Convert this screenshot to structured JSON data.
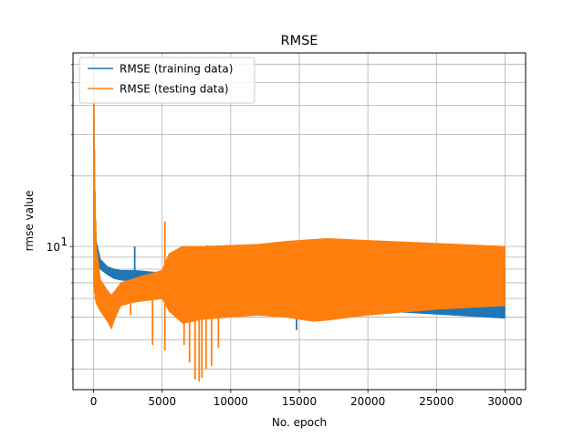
{
  "chart_data": {
    "type": "line",
    "title": "RMSE",
    "xlabel": "No. epoch",
    "ylabel": "rmse value",
    "xlim": [
      -1500,
      31500
    ],
    "ylim": [
      2.45,
      67
    ],
    "yscale": "log",
    "grid": true,
    "legend_position": "top-left",
    "x_ticks": [
      0,
      5000,
      10000,
      15000,
      20000,
      25000,
      30000
    ],
    "x_tick_labels": [
      "0",
      "5000",
      "10000",
      "15000",
      "20000",
      "25000",
      "30000"
    ],
    "y_major_ticks": [
      10
    ],
    "y_major_tick_label_base": "10",
    "y_major_tick_label_exp": "1",
    "y_minor_ticks": [
      3,
      4,
      5,
      6,
      7,
      8,
      9,
      20,
      30,
      40,
      50,
      60
    ],
    "series": [
      {
        "name": "RMSE (training data)",
        "color": "#1f77b4",
        "band": {
          "x": [
            0,
            100,
            200,
            500,
            1000,
            1500,
            2000,
            3000,
            4000,
            5000,
            5500,
            7000,
            9000,
            12000,
            15000,
            17000,
            20000,
            25000,
            30000
          ],
          "upper": [
            52,
            14,
            10.5,
            8.8,
            8.2,
            8.0,
            7.9,
            7.9,
            7.8,
            7.7,
            8.6,
            8.8,
            8.6,
            8.4,
            8.5,
            8.6,
            8.6,
            8.5,
            8.3
          ],
          "lower": [
            9.5,
            8.8,
            8.4,
            8.0,
            7.6,
            7.3,
            7.2,
            7.1,
            7.0,
            6.9,
            5.9,
            5.8,
            5.7,
            5.6,
            5.5,
            5.45,
            5.35,
            5.15,
            4.95
          ]
        },
        "spikes": [
          [
            3000,
            10.0
          ],
          [
            8300,
            10.1
          ],
          [
            14800,
            4.4
          ],
          [
            13200,
            5.0
          ]
        ]
      },
      {
        "name": "RMSE (testing data)",
        "color": "#ff7f0e",
        "band": {
          "x": [
            0,
            100,
            200,
            500,
            1000,
            1300,
            1600,
            2000,
            3000,
            4000,
            5000,
            5500,
            6500,
            8000,
            10000,
            12000,
            14000,
            15000,
            16000,
            17000,
            20000,
            25000,
            30000
          ],
          "upper": [
            60,
            20,
            10.0,
            7.2,
            6.5,
            6.2,
            6.5,
            7.0,
            7.3,
            7.6,
            7.9,
            9.3,
            10.0,
            10.0,
            10.1,
            10.2,
            10.5,
            10.6,
            10.7,
            10.8,
            10.6,
            10.3,
            10.0
          ],
          "lower": [
            7.0,
            6.0,
            5.7,
            5.3,
            4.8,
            4.45,
            5.0,
            5.6,
            5.8,
            5.9,
            6.0,
            5.3,
            4.7,
            4.9,
            5.0,
            5.1,
            5.0,
            4.9,
            4.8,
            4.85,
            5.1,
            5.4,
            5.6
          ]
        },
        "spikes": [
          [
            5200,
            12.8
          ],
          [
            7000,
            3.2
          ],
          [
            7400,
            2.7
          ],
          [
            7700,
            2.65
          ],
          [
            7900,
            2.75
          ],
          [
            8200,
            3.0
          ],
          [
            8600,
            3.1
          ],
          [
            6600,
            3.8
          ],
          [
            4300,
            3.8
          ],
          [
            5200,
            3.6
          ],
          [
            2700,
            5.1
          ],
          [
            9100,
            3.7
          ]
        ]
      }
    ]
  }
}
